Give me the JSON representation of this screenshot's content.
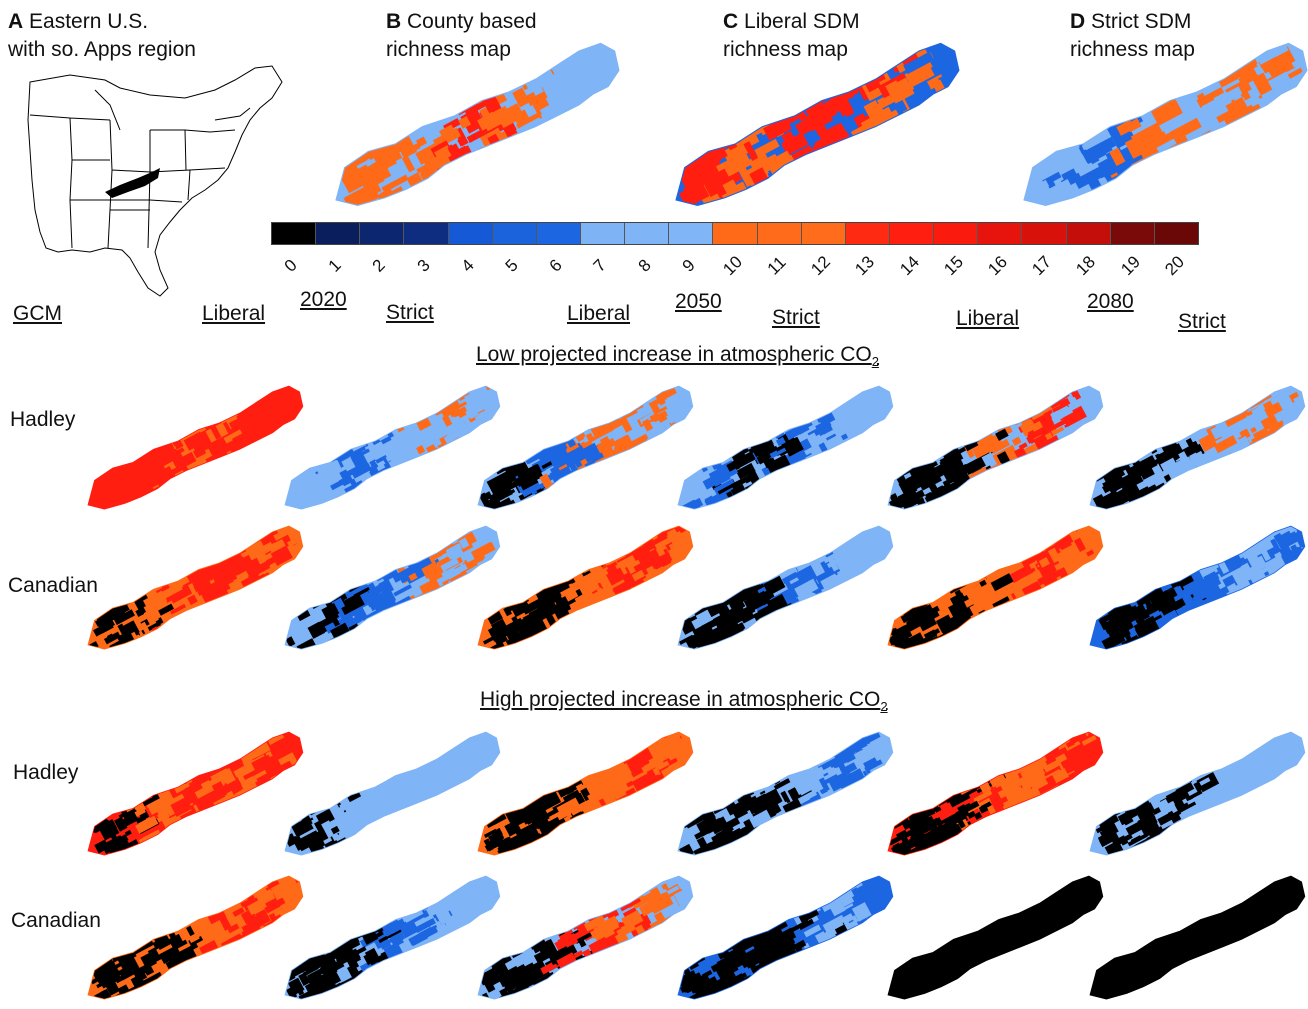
{
  "panels": {
    "a": {
      "letter": "A",
      "title": "Eastern U.S.\nwith so. Apps region"
    },
    "b": {
      "letter": "B",
      "title": "County based\nrichness map"
    },
    "c": {
      "letter": "C",
      "title": "Liberal SDM\nrichness map"
    },
    "d": {
      "letter": "D",
      "title": "Strict SDM\nrichness map"
    }
  },
  "legend": {
    "ticks": [
      "0",
      "1",
      "2",
      "3",
      "4",
      "5",
      "6",
      "7",
      "8",
      "9",
      "10",
      "11",
      "12",
      "13",
      "14",
      "15",
      "16",
      "17",
      "18",
      "19",
      "20"
    ],
    "colors": [
      "#000000",
      "#0a1e5e",
      "#0c2670",
      "#0f2d80",
      "#1559d6",
      "#1b62dd",
      "#1d66e2",
      "#7eb3f5",
      "#7fb4f6",
      "#80b5f7",
      "#ff6a18",
      "#ff6b1a",
      "#ff6c1c",
      "#ff2a12",
      "#ff1e10",
      "#fa1a0e",
      "#e6140c",
      "#d8110b",
      "#c40e0a",
      "#7a0909",
      "#6a0707"
    ]
  },
  "header": {
    "gcm": "GCM",
    "liberal": "Liberal",
    "strict": "Strict",
    "years": [
      "2020",
      "2050",
      "2080"
    ]
  },
  "sections": {
    "low": {
      "text": "Low projected increase in atmospheric CO",
      "sub": "2"
    },
    "high": {
      "text": "High projected increase in atmospheric CO",
      "sub": "2"
    }
  },
  "rows": [
    "Hadley",
    "Canadian",
    "Hadley",
    "Canadian"
  ],
  "colors": {
    "black": "#000000",
    "light_blue": "#7fb4f6",
    "blue": "#1d66e2",
    "orange": "#ff6a18",
    "red": "#ff1e10"
  }
}
